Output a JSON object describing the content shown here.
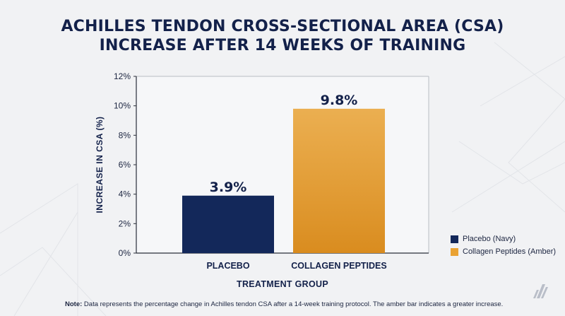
{
  "title": {
    "line1": "ACHILLES TENDON CROSS-SECTIONAL AREA (CSA)",
    "line2": "INCREASE AFTER 14 WEEKS OF TRAINING"
  },
  "chart_data": {
    "type": "bar",
    "categories": [
      "PLACEBO",
      "COLLAGEN PEPTIDES"
    ],
    "values": [
      3.9,
      9.8
    ],
    "data_labels": [
      "3.9%",
      "9.8%"
    ],
    "colors": [
      "#13285a",
      "#e9a233"
    ],
    "xlabel": "TREATMENT GROUP",
    "ylabel": "INCREASE IN CSA (%)",
    "ylim": [
      0,
      12
    ],
    "yticks": [
      0,
      2,
      4,
      6,
      8,
      10,
      12
    ],
    "ytick_labels": [
      "0%",
      "2%",
      "4%",
      "6%",
      "8%",
      "10%",
      "12%"
    ],
    "grid": false,
    "legend_position": "bottom-right",
    "legend": [
      "Placebo (Navy)",
      "Collagen Peptides (Amber)"
    ]
  },
  "note": {
    "label": "Note:",
    "text": "Data represents the percentage change in Achilles tendon CSA after a 14-week training protocol. The amber bar indicates a greater increase."
  }
}
